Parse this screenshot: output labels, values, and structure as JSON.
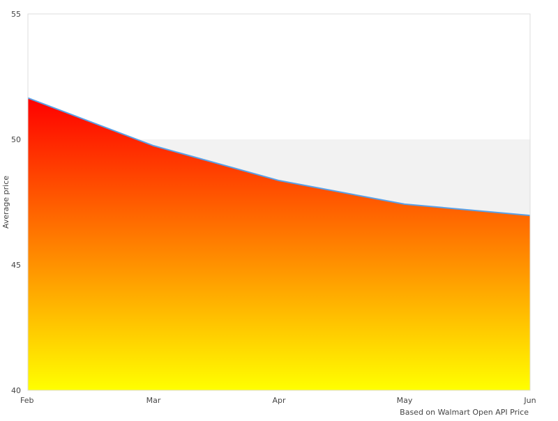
{
  "chart_data": {
    "type": "area",
    "categories": [
      "Feb",
      "Mar",
      "Apr",
      "May",
      "Jun"
    ],
    "series": [
      {
        "values": [
          51.65,
          49.75,
          48.36,
          47.42,
          46.97
        ]
      }
    ],
    "ylabel": "Average price",
    "xlabel": "",
    "ylim": [
      40,
      55
    ],
    "yticks": [
      "40",
      "45",
      "50",
      "55"
    ],
    "highlight_band": [
      45,
      50
    ],
    "caption": "Based on Walmart Open API Price",
    "grid": false,
    "colors": {
      "gradient_top": "#ff0000",
      "gradient_bottom": "#ffff00",
      "line": "#5aa0e6",
      "band": "#f2f2f2",
      "border": "#dddddd"
    }
  }
}
